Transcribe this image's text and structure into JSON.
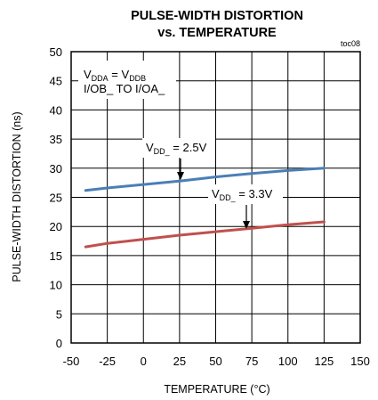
{
  "chart_data": {
    "type": "line",
    "title_line1": "PULSE-WIDTH DISTORTION",
    "title_line2": "vs. TEMPERATURE",
    "figure_id": "toc08",
    "xlabel": "TEMPERATURE (°C)",
    "ylabel": "PULSE-WIDTH DISTORTION (ns)",
    "xlim": [
      -50,
      150
    ],
    "ylim": [
      0,
      50
    ],
    "xticks": [
      -50,
      -25,
      0,
      25,
      50,
      75,
      100,
      125,
      150
    ],
    "yticks": [
      0,
      5,
      10,
      15,
      20,
      25,
      30,
      35,
      40,
      45,
      50
    ],
    "grid": true,
    "condition": {
      "line1_a": "V",
      "line1_a_sub": "DDA",
      "line1_mid": " = V",
      "line1_b_sub": "DDB",
      "line2": "I/OB_ TO I/OA_"
    },
    "series": [
      {
        "label_main": "V",
        "label_sub": "DD_",
        "label_value": " = 2.5V",
        "color": "#4a7fb5",
        "x": [
          -40,
          -25,
          0,
          25,
          50,
          75,
          100,
          125
        ],
        "y": [
          26.2,
          26.6,
          27.2,
          27.8,
          28.5,
          29.1,
          29.6,
          30.0
        ]
      },
      {
        "label_main": "V",
        "label_sub": "DD_",
        "label_value": " = 3.3V",
        "color": "#c0504d",
        "x": [
          -40,
          -25,
          0,
          25,
          50,
          75,
          100,
          125
        ],
        "y": [
          16.5,
          17.1,
          17.8,
          18.5,
          19.1,
          19.7,
          20.3,
          20.8
        ]
      }
    ]
  }
}
